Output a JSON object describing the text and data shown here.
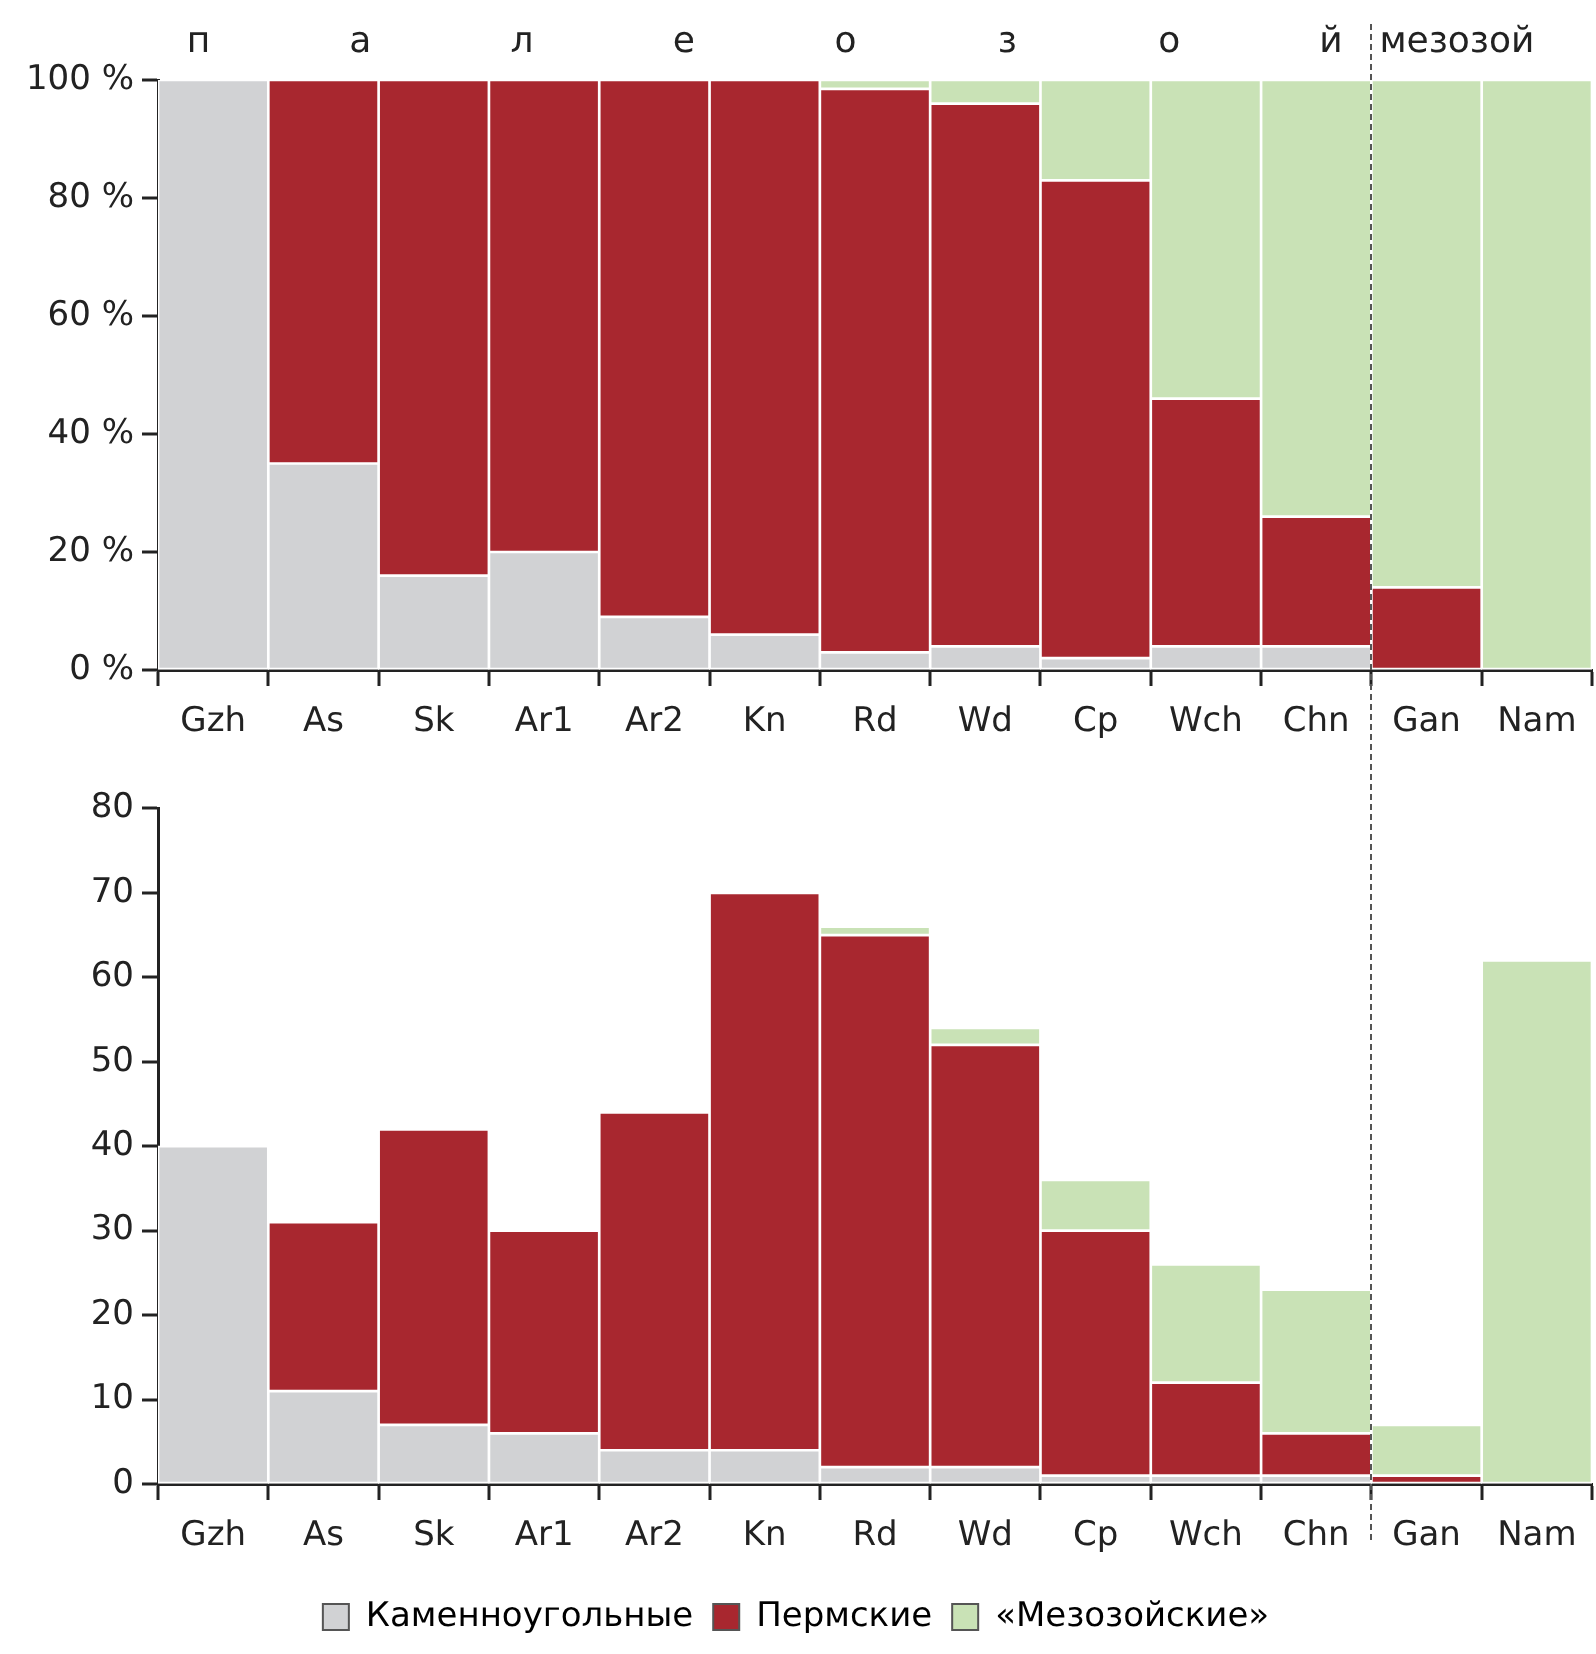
{
  "chart_data": [
    {
      "type": "bar",
      "stacked": true,
      "categories": [
        "Gzh",
        "As",
        "Sk",
        "Ar1",
        "Ar2",
        "Kn",
        "Rd",
        "Wd",
        "Cp",
        "Wch",
        "Chn",
        "Gan",
        "Nam"
      ],
      "series": [
        {
          "color": "#d1d2d4",
          "values": [
            100,
            35,
            16,
            20,
            9,
            6,
            3,
            4,
            2,
            4,
            4,
            0,
            0
          ]
        },
        {
          "color": "#a8272f",
          "values": [
            0,
            65,
            84,
            80,
            91,
            94,
            95.5,
            92,
            81,
            42,
            22,
            14,
            0
          ]
        },
        {
          "color": "#c9e2b6",
          "values": [
            0,
            0,
            0,
            0,
            0,
            0,
            1.5,
            4,
            17,
            54,
            74,
            86,
            100
          ]
        }
      ],
      "ylim": [
        0,
        100
      ],
      "yticks": [
        {
          "value": 0,
          "label": "0 %"
        },
        {
          "value": 20,
          "label": "20 %"
        },
        {
          "value": 40,
          "label": "40 %"
        },
        {
          "value": 60,
          "label": "60 %"
        },
        {
          "value": 80,
          "label": "80 %"
        },
        {
          "value": 100,
          "label": "100 %"
        }
      ],
      "annotations": [
        "п а л е о з о й",
        "мезозой"
      ]
    },
    {
      "type": "bar",
      "stacked": true,
      "legend": "bottom",
      "categories": [
        "Gzh",
        "As",
        "Sk",
        "Ar1",
        "Ar2",
        "Kn",
        "Rd",
        "Wd",
        "Cp",
        "Wch",
        "Chn",
        "Gan",
        "Nam"
      ],
      "series": [
        {
          "name": "Каменноугольные",
          "color": "#d1d2d4",
          "values": [
            40,
            11,
            7,
            6,
            4,
            4,
            2,
            2,
            1,
            1,
            1,
            0,
            0
          ]
        },
        {
          "name": "Пермские",
          "color": "#a8272f",
          "values": [
            0,
            20,
            35,
            24,
            40,
            66,
            63,
            50,
            29,
            11,
            5,
            1,
            0
          ]
        },
        {
          "name": "«Мезозойские»",
          "color": "#c9e2b6",
          "values": [
            0,
            0,
            0,
            0,
            0,
            0,
            1,
            2,
            6,
            14,
            17,
            6,
            62
          ]
        }
      ],
      "ylim": [
        0,
        80
      ],
      "yticks": [
        0,
        10,
        20,
        30,
        40,
        50,
        60,
        70,
        80
      ]
    }
  ]
}
